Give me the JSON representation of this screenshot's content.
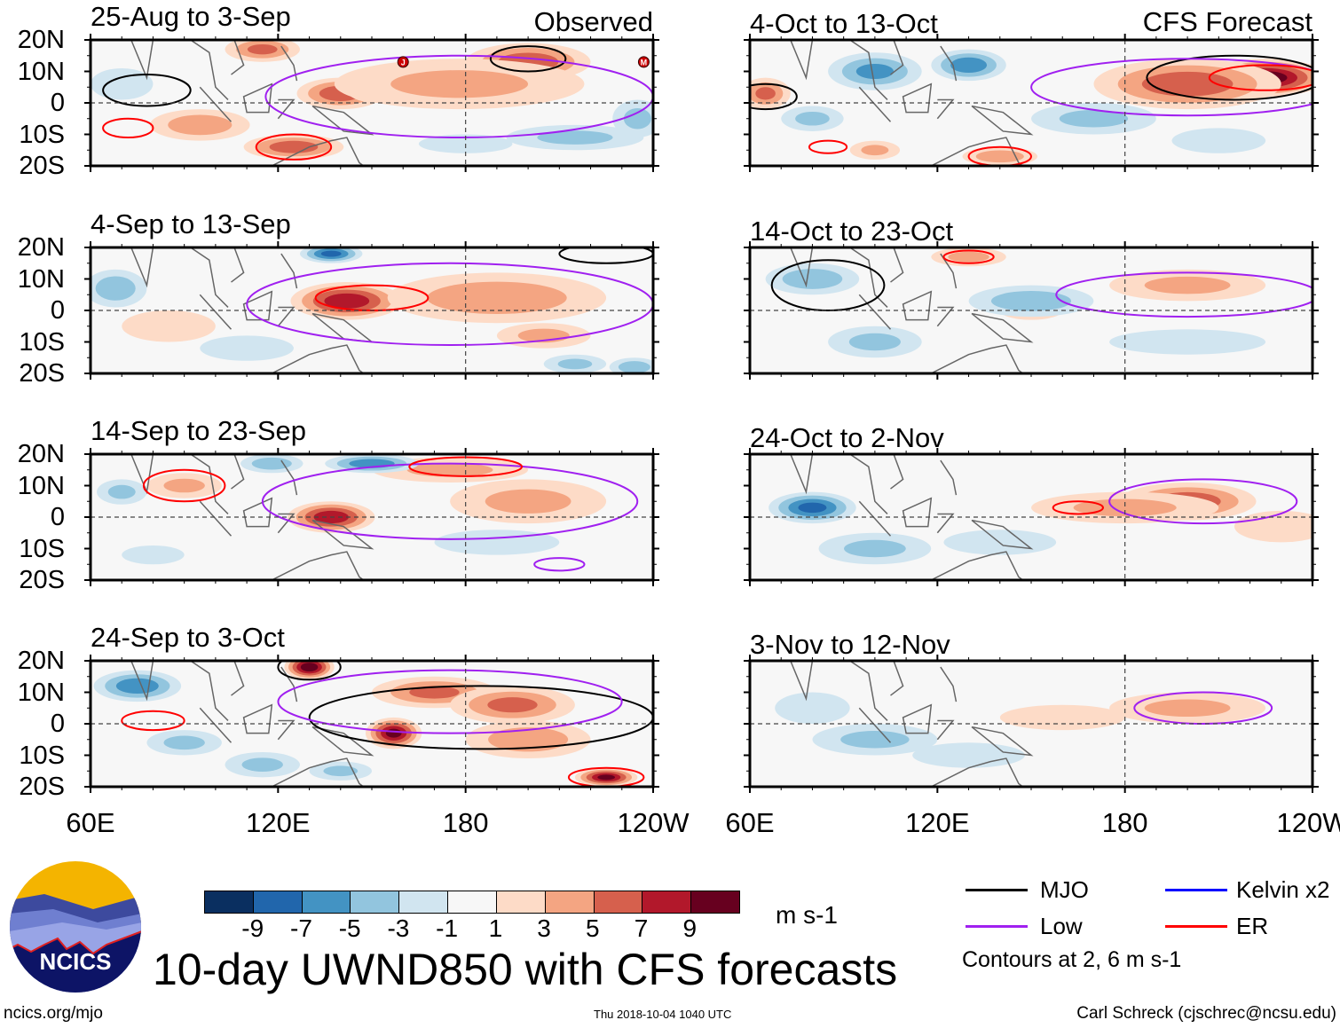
{
  "colors": {
    "levels": [
      "#0a2f60",
      "#2166ac",
      "#4393c3",
      "#92c5de",
      "#d1e5f0",
      "#f7f7f7",
      "#fddbc7",
      "#f4a582",
      "#d6604d",
      "#b2182b",
      "#67001f"
    ],
    "mjo": "#000000",
    "low": "#a020f0",
    "kelvin": "#0000ff",
    "er": "#ff0000"
  },
  "lat_labels": [
    "20N",
    "10N",
    "0",
    "10S",
    "20S"
  ],
  "lon_labels": [
    "60E",
    "120E",
    "180",
    "120W"
  ],
  "panels": [
    {
      "title": "25-Aug to 3-Sep",
      "tag": "Observed",
      "anoms": [
        [
          140,
          3,
          6,
          14,
          5
        ],
        [
          152,
          4,
          5,
          10,
          4
        ],
        [
          95,
          -7,
          4,
          16,
          5
        ],
        [
          125,
          -14,
          6,
          16,
          4
        ],
        [
          200,
          13,
          6,
          20,
          6
        ],
        [
          115,
          17,
          5,
          12,
          4
        ],
        [
          178,
          6,
          3,
          40,
          8
        ],
        [
          215,
          -11,
          -3,
          22,
          4
        ],
        [
          180,
          -13,
          -2,
          15,
          3
        ],
        [
          70,
          6,
          -2,
          10,
          5
        ],
        [
          235,
          -5,
          -3,
          8,
          6
        ]
      ],
      "contours": [
        [
          "mjo",
          200,
          14,
          12,
          4
        ],
        [
          "low",
          178,
          2,
          62,
          13
        ],
        [
          "er",
          125,
          -14,
          12,
          4
        ],
        [
          "er",
          72,
          -8,
          8,
          3
        ],
        [
          "mjo",
          78,
          4,
          14,
          5
        ]
      ],
      "storms": [
        [
          160,
          13,
          "J"
        ],
        [
          237,
          13,
          "M"
        ]
      ]
    },
    {
      "title": "4-Sep to 13-Sep",
      "anoms": [
        [
          142,
          3,
          8,
          18,
          6
        ],
        [
          190,
          4,
          4,
          35,
          8
        ],
        [
          205,
          -8,
          3,
          15,
          4
        ],
        [
          85,
          -5,
          2,
          15,
          5
        ],
        [
          137,
          18,
          -7,
          10,
          3
        ],
        [
          68,
          7,
          -4,
          10,
          6
        ],
        [
          234,
          -18,
          -4,
          8,
          3
        ],
        [
          215,
          -17,
          -3,
          10,
          3
        ],
        [
          110,
          -12,
          -2,
          15,
          4
        ]
      ],
      "contours": [
        [
          "low",
          175,
          2,
          65,
          13
        ],
        [
          "er",
          150,
          4,
          18,
          4
        ],
        [
          "mjo",
          225,
          18,
          15,
          3
        ]
      ],
      "storms": []
    },
    {
      "title": "14-Sep to 23-Sep",
      "anoms": [
        [
          137,
          0,
          8,
          14,
          5
        ],
        [
          175,
          15,
          3,
          25,
          4
        ],
        [
          90,
          10,
          3,
          12,
          4
        ],
        [
          200,
          5,
          3,
          25,
          7
        ],
        [
          150,
          17,
          -6,
          15,
          3
        ],
        [
          118,
          17,
          -4,
          10,
          3
        ],
        [
          70,
          8,
          -3,
          8,
          4
        ],
        [
          190,
          -8,
          -2,
          20,
          4
        ],
        [
          80,
          -12,
          -2,
          10,
          3
        ]
      ],
      "contours": [
        [
          "low",
          175,
          5,
          60,
          12
        ],
        [
          "er",
          90,
          10,
          13,
          5
        ],
        [
          "er",
          180,
          16,
          18,
          3
        ],
        [
          "low",
          210,
          -15,
          8,
          2
        ]
      ],
      "storms": []
    },
    {
      "title": "24-Sep to 3-Oct",
      "anoms": [
        [
          130,
          18,
          10,
          8,
          4
        ],
        [
          157,
          -3,
          9,
          9,
          5
        ],
        [
          170,
          10,
          5,
          20,
          5
        ],
        [
          195,
          6,
          5,
          20,
          6
        ],
        [
          225,
          -17,
          9,
          10,
          3
        ],
        [
          200,
          -5,
          4,
          20,
          6
        ],
        [
          75,
          12,
          -6,
          14,
          5
        ],
        [
          90,
          -6,
          -3,
          12,
          4
        ],
        [
          115,
          -13,
          -3,
          12,
          4
        ],
        [
          140,
          -15,
          -3,
          10,
          3
        ]
      ],
      "contours": [
        [
          "mjo",
          185,
          2,
          55,
          10
        ],
        [
          "low",
          175,
          7,
          55,
          10
        ],
        [
          "er",
          80,
          1,
          10,
          3
        ],
        [
          "er",
          225,
          -17,
          12,
          3
        ],
        [
          "mjo",
          130,
          18,
          10,
          4
        ]
      ],
      "storms": []
    },
    {
      "title": "4-Oct to 13-Oct",
      "tag": "CFS Forecast",
      "anoms": [
        [
          225,
          8,
          10,
          20,
          6
        ],
        [
          200,
          6,
          6,
          30,
          8
        ],
        [
          65,
          3,
          5,
          8,
          5
        ],
        [
          140,
          -17,
          4,
          12,
          3
        ],
        [
          100,
          -15,
          3,
          8,
          3
        ],
        [
          100,
          10,
          -5,
          15,
          6
        ],
        [
          130,
          12,
          -6,
          12,
          5
        ],
        [
          80,
          -5,
          -3,
          10,
          4
        ],
        [
          170,
          -5,
          -3,
          20,
          5
        ],
        [
          210,
          -12,
          -2,
          15,
          4
        ]
      ],
      "contours": [
        [
          "mjo",
          215,
          8,
          28,
          7
        ],
        [
          "low",
          200,
          5,
          50,
          9
        ],
        [
          "er",
          225,
          8,
          18,
          4
        ],
        [
          "er",
          140,
          -17,
          10,
          3
        ],
        [
          "er",
          85,
          -14,
          6,
          2
        ],
        [
          "mjo",
          65,
          2,
          10,
          4
        ]
      ],
      "storms": []
    },
    {
      "title": "14-Oct to 23-Oct",
      "anoms": [
        [
          200,
          8,
          3,
          25,
          5
        ],
        [
          150,
          0,
          2,
          10,
          3
        ],
        [
          130,
          17,
          3,
          12,
          3
        ],
        [
          80,
          10,
          -4,
          15,
          5
        ],
        [
          150,
          3,
          -4,
          20,
          5
        ],
        [
          100,
          -10,
          -3,
          15,
          5
        ],
        [
          200,
          -10,
          -2,
          25,
          4
        ]
      ],
      "contours": [
        [
          "low",
          200,
          5,
          42,
          7
        ],
        [
          "mjo",
          85,
          8,
          18,
          8
        ],
        [
          "er",
          130,
          17,
          8,
          2
        ]
      ],
      "storms": []
    },
    {
      "title": "24-Oct to 2-Nov",
      "anoms": [
        [
          200,
          5,
          6,
          22,
          6
        ],
        [
          180,
          3,
          3,
          30,
          5
        ],
        [
          230,
          -3,
          2,
          15,
          5
        ],
        [
          80,
          3,
          -7,
          14,
          5
        ],
        [
          100,
          -10,
          -3,
          18,
          5
        ],
        [
          140,
          -8,
          -2,
          18,
          4
        ]
      ],
      "contours": [
        [
          "low",
          205,
          5,
          30,
          7
        ],
        [
          "er",
          165,
          3,
          8,
          2
        ]
      ],
      "storms": []
    },
    {
      "title": "3-Nov to 12-Nov",
      "anoms": [
        [
          200,
          5,
          3,
          25,
          5
        ],
        [
          160,
          2,
          2,
          20,
          4
        ],
        [
          100,
          -5,
          -3,
          20,
          5
        ],
        [
          130,
          -10,
          -2,
          18,
          4
        ],
        [
          80,
          5,
          -2,
          12,
          5
        ]
      ],
      "contours": [
        [
          "low",
          205,
          5,
          22,
          5
        ]
      ],
      "storms": []
    }
  ],
  "colorbar": {
    "ticks": [
      "-9",
      "-7",
      "-5",
      "-3",
      "-1",
      "1",
      "3",
      "5",
      "7",
      "9"
    ],
    "units": "m s-1"
  },
  "legend": {
    "mjo": "MJO",
    "low": "Low",
    "kelvin": "Kelvin x2",
    "er": "ER",
    "note": "Contours at 2, 6 m s-1"
  },
  "logo_text": "NCICS",
  "main_title": "10-day UWND850 with CFS forecasts",
  "url": "ncics.org/mjo",
  "timestamp": "Thu 2018-10-04 1040 UTC",
  "credit": "Carl Schreck (cjschrec@ncsu.edu)"
}
